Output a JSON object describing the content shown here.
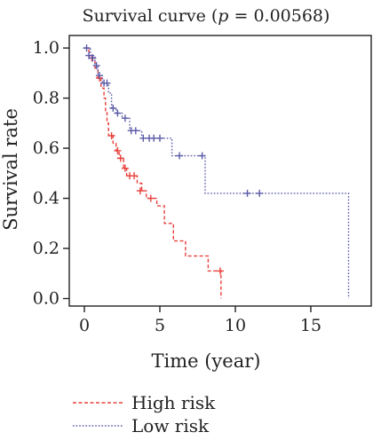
{
  "chart_data": {
    "type": "line",
    "title": "Survival curve (p = 0.00568)",
    "title_parts": {
      "prefix": "Survival curve (",
      "p_symbol": "p",
      "suffix": " = 0.00568)"
    },
    "xlabel": "Time (year)",
    "ylabel": "Survival rate",
    "xlim": [
      -1,
      19
    ],
    "ylim": [
      -0.03,
      1.05
    ],
    "xticks": [
      0,
      5,
      10,
      15
    ],
    "xtick_labels": [
      "0",
      "5",
      "10",
      "15"
    ],
    "yticks": [
      0.0,
      0.2,
      0.4,
      0.6,
      0.8,
      1.0
    ],
    "ytick_labels": [
      "0.0",
      "0.2",
      "0.4",
      "0.6",
      "0.8",
      "1.0"
    ],
    "grid": false,
    "legend_position": "bottom-left, below plot",
    "series": [
      {
        "name": "High risk",
        "color": "#e8413c",
        "line_style": "dashed",
        "steps": [
          [
            0.0,
            1.0
          ],
          [
            0.3,
            0.96
          ],
          [
            0.7,
            0.92
          ],
          [
            0.9,
            0.88
          ],
          [
            1.1,
            0.84
          ],
          [
            1.3,
            0.8
          ],
          [
            1.4,
            0.75
          ],
          [
            1.5,
            0.7
          ],
          [
            1.6,
            0.65
          ],
          [
            1.9,
            0.62
          ],
          [
            2.1,
            0.59
          ],
          [
            2.3,
            0.56
          ],
          [
            2.6,
            0.52
          ],
          [
            2.8,
            0.49
          ],
          [
            3.5,
            0.46
          ],
          [
            3.8,
            0.43
          ],
          [
            4.1,
            0.4
          ],
          [
            4.8,
            0.37
          ],
          [
            5.3,
            0.3
          ],
          [
            5.9,
            0.23
          ],
          [
            6.7,
            0.17
          ],
          [
            8.2,
            0.11
          ],
          [
            9.05,
            0.11
          ],
          [
            9.05,
            0.0
          ]
        ],
        "censored": [
          [
            0.5,
            0.96
          ],
          [
            1.0,
            0.88
          ],
          [
            1.8,
            0.65
          ],
          [
            2.2,
            0.59
          ],
          [
            2.4,
            0.56
          ],
          [
            2.7,
            0.52
          ],
          [
            3.0,
            0.49
          ],
          [
            3.3,
            0.49
          ],
          [
            3.7,
            0.43
          ],
          [
            4.4,
            0.4
          ],
          [
            9.0,
            0.11
          ]
        ]
      },
      {
        "name": "Low risk",
        "color": "#5b5ba8",
        "line_style": "dotted",
        "steps": [
          [
            0.0,
            1.0
          ],
          [
            0.4,
            0.97
          ],
          [
            0.7,
            0.93
          ],
          [
            0.9,
            0.89
          ],
          [
            1.2,
            0.86
          ],
          [
            1.6,
            0.82
          ],
          [
            1.8,
            0.76
          ],
          [
            2.1,
            0.74
          ],
          [
            2.5,
            0.72
          ],
          [
            3.0,
            0.67
          ],
          [
            3.8,
            0.64
          ],
          [
            5.8,
            0.57
          ],
          [
            8.0,
            0.42
          ],
          [
            17.5,
            0.42
          ],
          [
            17.5,
            0.0
          ]
        ],
        "censored": [
          [
            0.15,
            1.0
          ],
          [
            0.3,
            0.97
          ],
          [
            0.55,
            0.96
          ],
          [
            0.8,
            0.93
          ],
          [
            1.0,
            0.89
          ],
          [
            1.3,
            0.86
          ],
          [
            1.5,
            0.86
          ],
          [
            1.9,
            0.76
          ],
          [
            2.2,
            0.74
          ],
          [
            2.7,
            0.72
          ],
          [
            3.1,
            0.67
          ],
          [
            3.4,
            0.67
          ],
          [
            3.9,
            0.64
          ],
          [
            4.3,
            0.64
          ],
          [
            4.6,
            0.64
          ],
          [
            5.0,
            0.64
          ],
          [
            6.3,
            0.57
          ],
          [
            7.8,
            0.57
          ],
          [
            10.8,
            0.42
          ],
          [
            11.6,
            0.42
          ]
        ]
      }
    ]
  }
}
